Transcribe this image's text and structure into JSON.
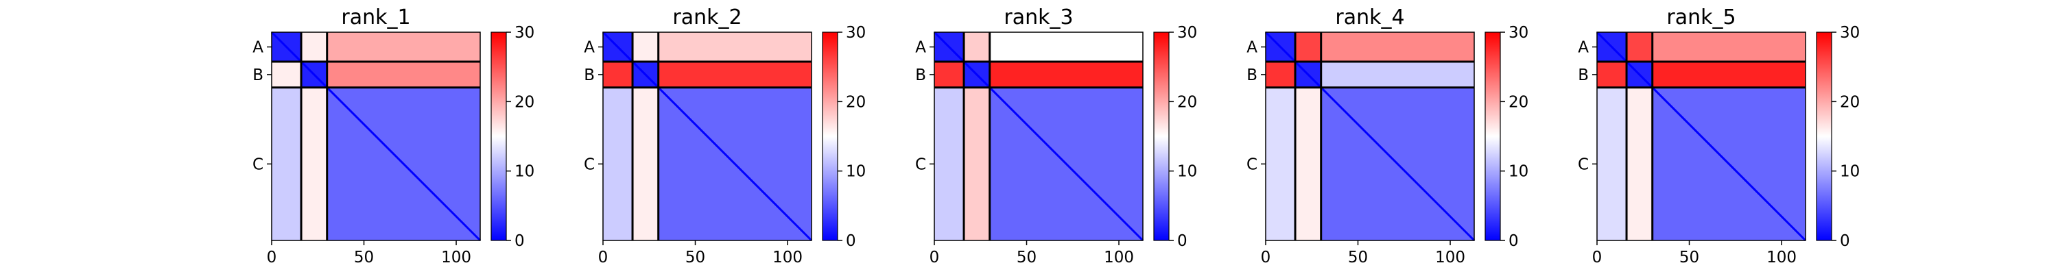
{
  "chart_data": {
    "type": "heatmap",
    "x_range": [
      0,
      113
    ],
    "x_ticks": [
      0,
      50,
      100
    ],
    "chains": [
      "A",
      "B",
      "C"
    ],
    "chain_boundaries": [
      0,
      16,
      30,
      113
    ],
    "colorbar": {
      "range": [
        0,
        30
      ],
      "ticks": [
        0,
        10,
        20,
        30
      ],
      "colormap": "bwr",
      "colors": {
        "low": "#0000ff",
        "mid": "#ffffff",
        "high": "#ff0000"
      }
    },
    "panels": [
      {
        "title": "rank_1",
        "block_levels": [
          [
            2,
            16,
            20
          ],
          [
            16,
            2,
            22
          ],
          [
            12,
            16,
            6
          ]
        ]
      },
      {
        "title": "rank_2",
        "block_levels": [
          [
            2,
            16,
            18
          ],
          [
            27,
            2,
            27
          ],
          [
            12,
            16,
            6
          ]
        ]
      },
      {
        "title": "rank_3",
        "block_levels": [
          [
            2,
            18,
            15
          ],
          [
            27,
            2,
            28
          ],
          [
            12,
            18,
            6
          ]
        ]
      },
      {
        "title": "rank_4",
        "block_levels": [
          [
            2,
            26,
            22
          ],
          [
            27,
            2,
            12
          ],
          [
            13,
            16,
            6
          ]
        ]
      },
      {
        "title": "rank_5",
        "block_levels": [
          [
            2,
            26,
            22
          ],
          [
            27,
            2,
            28
          ],
          [
            13,
            16,
            6
          ]
        ]
      }
    ]
  }
}
